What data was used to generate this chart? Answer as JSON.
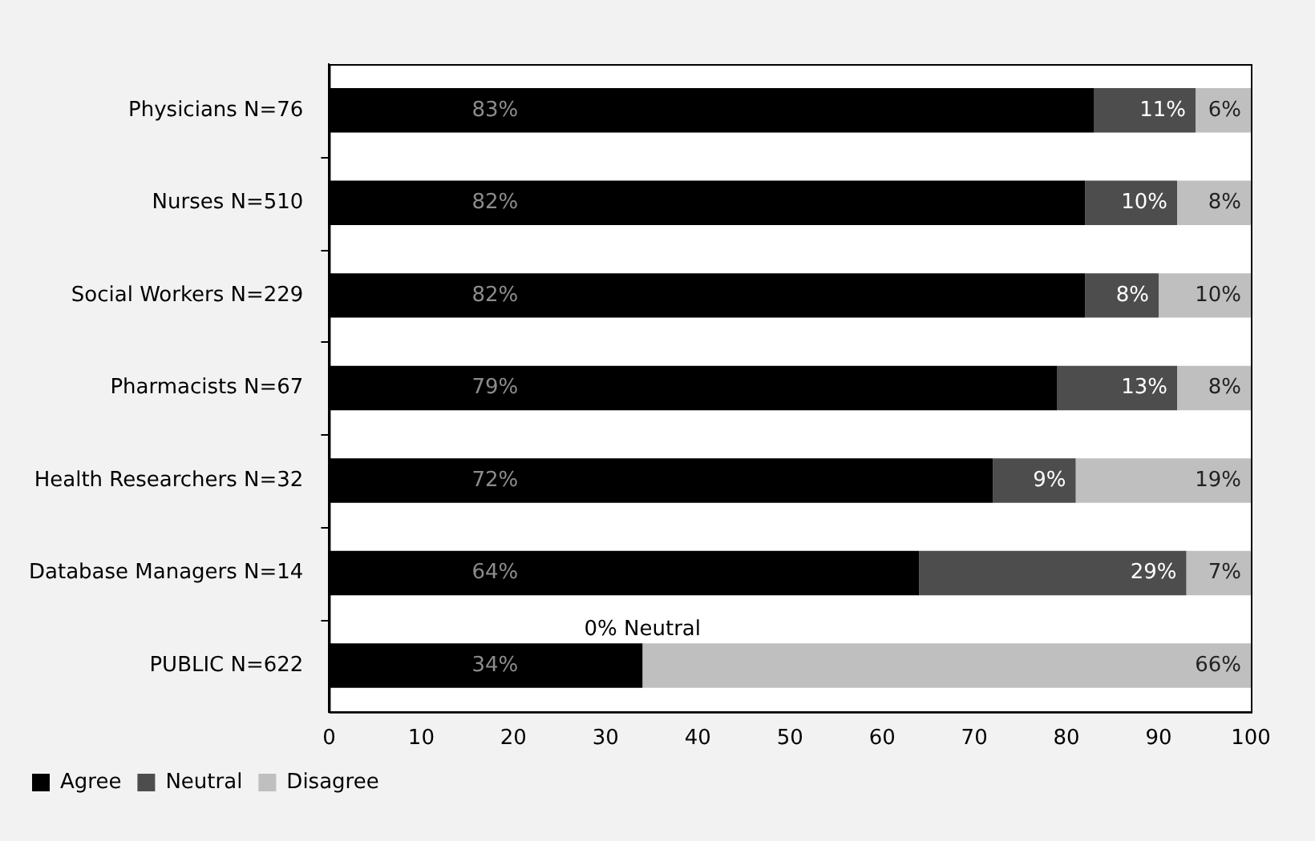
{
  "chart_data": {
    "type": "bar",
    "orientation": "horizontal",
    "stacked": true,
    "categories": [
      "Physicians N=76",
      "Nurses N=510",
      "Social Workers N=229",
      "Pharmacists N=67",
      "Health Researchers N=32",
      "Database Managers N=14",
      "PUBLIC N=622"
    ],
    "series": [
      {
        "name": "Agree",
        "color": "#000000",
        "values": [
          83,
          82,
          82,
          79,
          72,
          64,
          34
        ],
        "value_labels": [
          "83%",
          "82%",
          "82%",
          "79%",
          "72%",
          "64%",
          "34%"
        ]
      },
      {
        "name": "Neutral",
        "color": "#4d4d4d",
        "values": [
          11,
          10,
          8,
          13,
          9,
          29,
          0
        ],
        "value_labels": [
          "11%",
          "10%",
          "8%",
          "13%",
          "9%",
          "29%",
          null
        ]
      },
      {
        "name": "Disagree",
        "color": "#bfbfbf",
        "values": [
          6,
          8,
          10,
          8,
          19,
          7,
          66
        ],
        "value_labels": [
          "6%",
          "8%",
          "10%",
          "8%",
          "19%",
          "7%",
          "66%"
        ]
      }
    ],
    "xlim": [
      0,
      100
    ],
    "xticks": [
      0,
      10,
      20,
      30,
      40,
      50,
      60,
      70,
      80,
      90,
      100
    ],
    "legend": "bottom left",
    "annotations": [
      {
        "text": "0% Neutral",
        "x": 34,
        "y": "PUBLIC N=622"
      }
    ]
  }
}
